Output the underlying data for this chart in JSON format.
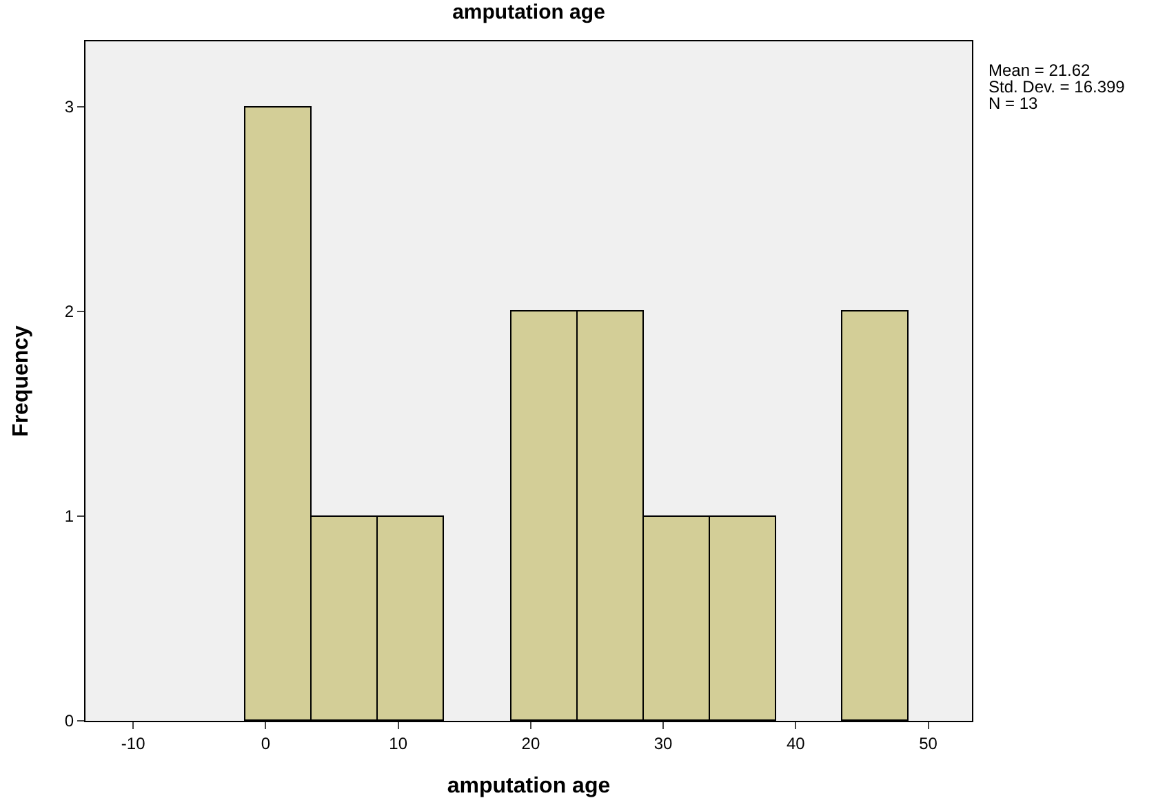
{
  "chart_data": {
    "type": "histogram",
    "title": "amputation age",
    "xlabel": "amputation age",
    "ylabel": "Frequency",
    "bins": [
      -1.5,
      3.5,
      8.5,
      13.5,
      18.5,
      23.5,
      28.5,
      33.5,
      38.5,
      43.5,
      48.5
    ],
    "values": [
      3,
      1,
      1,
      0,
      2,
      2,
      1,
      1,
      0,
      2
    ],
    "color": "#d3ce97",
    "xlim": [
      -13.6,
      53.3
    ],
    "xticks": [
      -10,
      0,
      10,
      20,
      30,
      40,
      50
    ],
    "ylim": [
      0,
      3.32
    ],
    "yticks": [
      0,
      1,
      2,
      3
    ],
    "annotations": [
      "Mean = 21.62",
      "Std. Dev. = 16.399",
      "N = 13"
    ]
  }
}
